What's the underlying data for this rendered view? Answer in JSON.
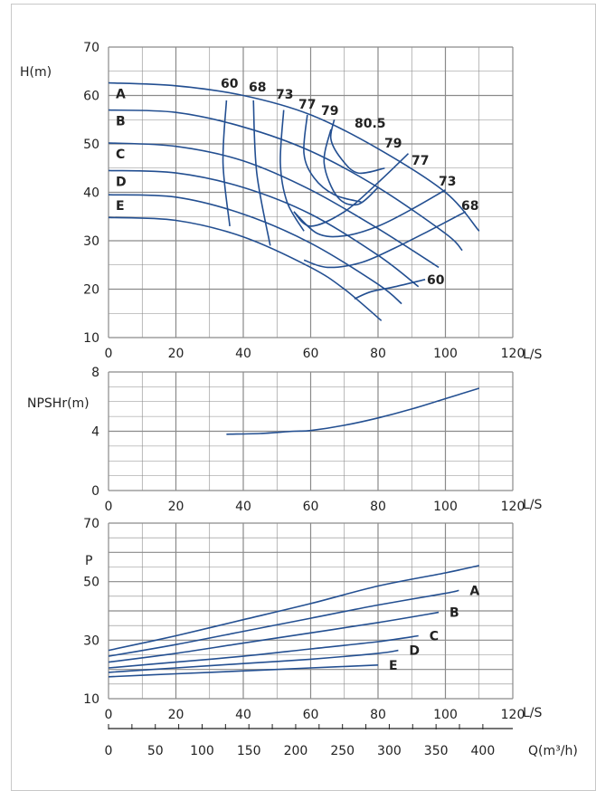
{
  "colors": {
    "curve": "#234f91",
    "grid": "#8a8a8a",
    "frame": "#c8c8c8",
    "text": "#222222"
  },
  "chart_data": [
    {
      "type": "line",
      "panel": "head",
      "ylabel": "H(m)",
      "xunit": "L/S",
      "xlim": [
        0,
        120
      ],
      "ylim": [
        10,
        70
      ],
      "xticks": [
        0,
        20,
        40,
        60,
        80,
        100,
        120
      ],
      "yticks": [
        10,
        20,
        30,
        40,
        50,
        60,
        70
      ],
      "grid": true,
      "series": [
        {
          "name": "A",
          "x": [
            0,
            20,
            40,
            60,
            80,
            100,
            110
          ],
          "y": [
            62.6,
            62,
            60,
            56,
            49,
            40,
            32
          ]
        },
        {
          "name": "B",
          "x": [
            0,
            20,
            40,
            60,
            80,
            100,
            105
          ],
          "y": [
            57,
            56.5,
            53.5,
            48.5,
            41,
            31.5,
            28
          ]
        },
        {
          "name": "C",
          "x": [
            0,
            20,
            40,
            60,
            80,
            98
          ],
          "y": [
            50.2,
            49.5,
            46.5,
            40.5,
            32.5,
            24.5
          ]
        },
        {
          "name": "D",
          "x": [
            0,
            20,
            40,
            60,
            80,
            92
          ],
          "y": [
            44.5,
            44,
            41,
            35.5,
            27,
            20.5
          ]
        },
        {
          "name": "E",
          "x": [
            0,
            20,
            40,
            60,
            80,
            87
          ],
          "y": [
            39.5,
            39,
            35.5,
            29.5,
            21,
            17
          ]
        },
        {
          "name": "",
          "x": [
            0,
            20,
            40,
            60,
            70,
            81
          ],
          "y": [
            34.8,
            34.2,
            30.8,
            24.5,
            20,
            13.5
          ]
        }
      ],
      "efficiency_curves": [
        {
          "label": "60",
          "x": [
            35,
            34,
            36
          ],
          "y": [
            59,
            46,
            33
          ]
        },
        {
          "label": "68",
          "x": [
            43,
            44,
            48
          ],
          "y": [
            59,
            44,
            29
          ]
        },
        {
          "label": "73",
          "x": [
            52,
            51,
            53,
            58
          ],
          "y": [
            57,
            46,
            38,
            32
          ]
        },
        {
          "label": "77",
          "x": [
            59,
            58,
            61,
            67,
            75
          ],
          "y": [
            56,
            48,
            43,
            39.5,
            38
          ]
        },
        {
          "label": "79",
          "x": [
            67,
            66,
            69,
            74,
            82
          ],
          "y": [
            55,
            51,
            47,
            44,
            45
          ]
        },
        {
          "label": "79",
          "x": [
            66,
            64,
            68,
            74,
            80
          ],
          "y": [
            53,
            46,
            39,
            37.5,
            41
          ]
        },
        {
          "label": "77",
          "x": [
            89,
            80,
            70,
            60,
            55
          ],
          "y": [
            48,
            42,
            36,
            33,
            36
          ]
        },
        {
          "label": "73",
          "x": [
            100,
            90,
            80,
            70,
            62,
            55
          ],
          "y": [
            40.5,
            36.5,
            33,
            31,
            31.5,
            36
          ]
        },
        {
          "label": "68",
          "x": [
            106,
            95,
            85,
            75,
            65,
            58
          ],
          "y": [
            36,
            32,
            28.5,
            25.5,
            24.5,
            26
          ]
        },
        {
          "label": "60",
          "x": [
            94,
            85,
            78,
            73
          ],
          "y": [
            22,
            20.5,
            19.5,
            18
          ]
        }
      ],
      "efficiency_labels": [
        "60",
        "68",
        "73",
        "77",
        "79",
        "80.5",
        "79",
        "77",
        "73",
        "68",
        "60"
      ]
    },
    {
      "type": "line",
      "panel": "npsh",
      "ylabel": "NPSHr(m)",
      "xunit": "L/S",
      "xlim": [
        0,
        120
      ],
      "ylim": [
        0,
        8
      ],
      "xticks": [
        0,
        20,
        40,
        60,
        80,
        100,
        120
      ],
      "yticks": [
        0,
        4,
        8
      ],
      "grid": true,
      "series": [
        {
          "name": "",
          "x": [
            35,
            45,
            55,
            60,
            70,
            80,
            90,
            100,
            110
          ],
          "y": [
            3.8,
            3.85,
            4,
            4.05,
            4.4,
            4.9,
            5.5,
            6.2,
            6.9
          ]
        }
      ]
    },
    {
      "type": "line",
      "panel": "power",
      "ylabel": "P",
      "xunit": "L/S",
      "x2unit": "Q(m³/h)",
      "xlim": [
        0,
        120
      ],
      "ylim": [
        10,
        70
      ],
      "xticks": [
        0,
        20,
        40,
        60,
        80,
        100,
        120
      ],
      "yticks": [
        10,
        30,
        50,
        70
      ],
      "x2ticks": [
        0,
        50,
        100,
        150,
        200,
        250,
        300,
        350,
        400
      ],
      "grid": true,
      "series": [
        {
          "name": "",
          "x": [
            0,
            20,
            40,
            60,
            80,
            100,
            110
          ],
          "y": [
            26.5,
            31.5,
            37,
            42.5,
            48.5,
            53,
            55.5
          ]
        },
        {
          "name": "A",
          "x": [
            0,
            20,
            40,
            60,
            80,
            100,
            104
          ],
          "y": [
            24.5,
            28.5,
            33,
            37.5,
            42,
            46,
            47
          ]
        },
        {
          "name": "B",
          "x": [
            0,
            20,
            40,
            60,
            80,
            98
          ],
          "y": [
            22.5,
            25.5,
            29,
            32.5,
            36,
            39.5
          ]
        },
        {
          "name": "C",
          "x": [
            0,
            20,
            40,
            60,
            80,
            92
          ],
          "y": [
            20.5,
            22.5,
            24.5,
            27,
            29.5,
            31.5
          ]
        },
        {
          "name": "D",
          "x": [
            0,
            20,
            40,
            60,
            80,
            86
          ],
          "y": [
            19,
            20.5,
            22,
            23.5,
            25.5,
            26.5
          ]
        },
        {
          "name": "E",
          "x": [
            0,
            20,
            40,
            60,
            80
          ],
          "y": [
            17.5,
            18.5,
            19.5,
            20.5,
            21.5
          ]
        }
      ]
    }
  ]
}
